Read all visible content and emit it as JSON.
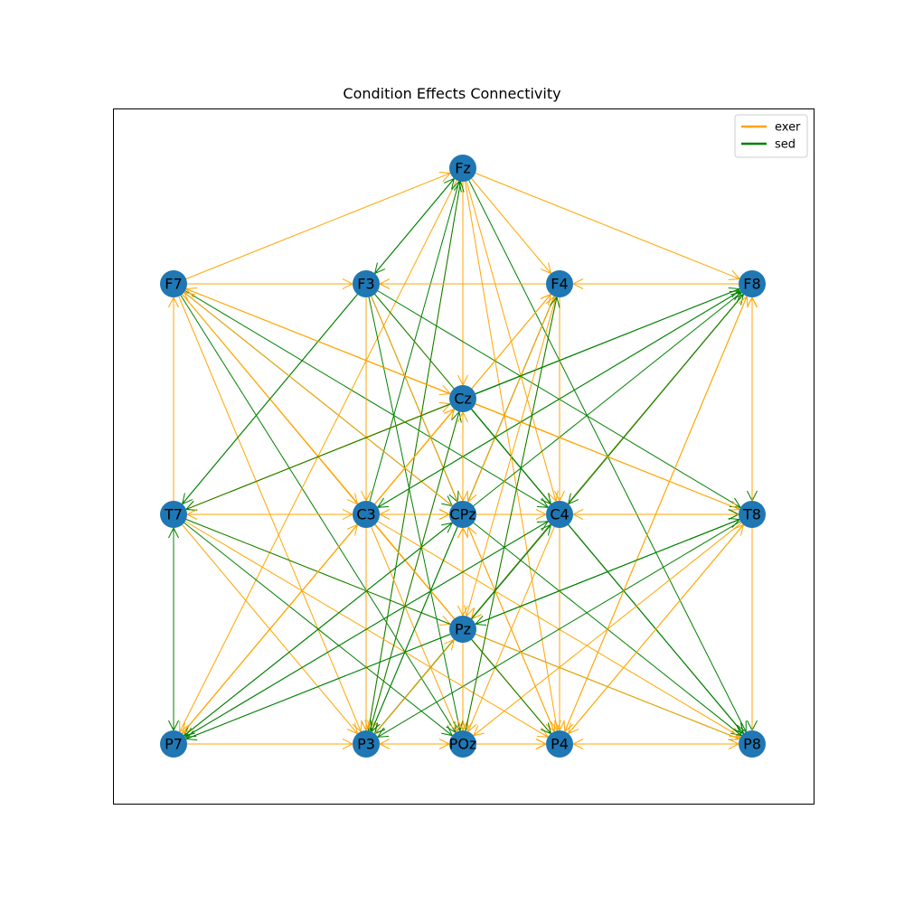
{
  "title": "Condition Effects Connectivity",
  "colors": {
    "exer": "#ffa500",
    "sed": "#008000",
    "node": "#1f77b4"
  },
  "legend": [
    {
      "key": "exer",
      "label": "exer"
    },
    {
      "key": "sed",
      "label": "sed"
    }
  ],
  "nodes": [
    {
      "id": "Fz",
      "label": "Fz"
    },
    {
      "id": "F7",
      "label": "F7"
    },
    {
      "id": "F3",
      "label": "F3"
    },
    {
      "id": "F4",
      "label": "F4"
    },
    {
      "id": "F8",
      "label": "F8"
    },
    {
      "id": "Cz",
      "label": "Cz"
    },
    {
      "id": "T7",
      "label": "T7"
    },
    {
      "id": "C3",
      "label": "C3"
    },
    {
      "id": "CPz",
      "label": "CPz"
    },
    {
      "id": "C4",
      "label": "C4"
    },
    {
      "id": "T8",
      "label": "T8"
    },
    {
      "id": "Pz",
      "label": "Pz"
    },
    {
      "id": "P7",
      "label": "P7"
    },
    {
      "id": "P3",
      "label": "P3"
    },
    {
      "id": "POz",
      "label": "POz"
    },
    {
      "id": "P4",
      "label": "P4"
    },
    {
      "id": "P8",
      "label": "P8"
    }
  ],
  "edges": [
    {
      "from": "F7",
      "to": "Fz",
      "condition": "exer"
    },
    {
      "from": "F7",
      "to": "F3",
      "condition": "exer"
    },
    {
      "from": "F7",
      "to": "Cz",
      "condition": "exer"
    },
    {
      "from": "F7",
      "to": "C3",
      "condition": "exer"
    },
    {
      "from": "F7",
      "to": "P3",
      "condition": "exer"
    },
    {
      "from": "F7",
      "to": "CPz",
      "condition": "sed"
    },
    {
      "from": "F7",
      "to": "C4",
      "condition": "sed"
    },
    {
      "from": "F7",
      "to": "POz",
      "condition": "sed"
    },
    {
      "from": "F7",
      "to": "P4",
      "condition": "exer"
    },
    {
      "from": "Fz",
      "to": "F4",
      "condition": "exer"
    },
    {
      "from": "Fz",
      "to": "F8",
      "condition": "exer"
    },
    {
      "from": "Fz",
      "to": "F3",
      "condition": "sed"
    },
    {
      "from": "Fz",
      "to": "Cz",
      "condition": "exer"
    },
    {
      "from": "Fz",
      "to": "CPz",
      "condition": "exer"
    },
    {
      "from": "Fz",
      "to": "Pz",
      "condition": "exer"
    },
    {
      "from": "Fz",
      "to": "POz",
      "condition": "exer"
    },
    {
      "from": "Fz",
      "to": "P4",
      "condition": "exer"
    },
    {
      "from": "Fz",
      "to": "P8",
      "condition": "sed"
    },
    {
      "from": "Fz",
      "to": "C4",
      "condition": "exer"
    },
    {
      "from": "Fz",
      "to": "P3",
      "condition": "exer"
    },
    {
      "from": "Fz",
      "to": "P7",
      "condition": "exer"
    },
    {
      "from": "C3",
      "to": "Fz",
      "condition": "sed"
    },
    {
      "from": "P3",
      "to": "Fz",
      "condition": "sed"
    },
    {
      "from": "T7",
      "to": "Fz",
      "condition": "sed"
    },
    {
      "from": "F4",
      "to": "F3",
      "condition": "exer"
    },
    {
      "from": "F8",
      "to": "F4",
      "condition": "exer"
    },
    {
      "from": "F3",
      "to": "T7",
      "condition": "sed"
    },
    {
      "from": "F3",
      "to": "C3",
      "condition": "exer"
    },
    {
      "from": "F3",
      "to": "CPz",
      "condition": "sed"
    },
    {
      "from": "F3",
      "to": "C4",
      "condition": "exer"
    },
    {
      "from": "F3",
      "to": "T8",
      "condition": "sed"
    },
    {
      "from": "F3",
      "to": "P3",
      "condition": "exer"
    },
    {
      "from": "F3",
      "to": "POz",
      "condition": "sed"
    },
    {
      "from": "F3",
      "to": "P4",
      "condition": "exer"
    },
    {
      "from": "F3",
      "to": "P8",
      "condition": "sed"
    },
    {
      "from": "T7",
      "to": "F7",
      "condition": "exer"
    },
    {
      "from": "T7",
      "to": "Cz",
      "condition": "exer"
    },
    {
      "from": "Cz",
      "to": "T7",
      "condition": "exer"
    },
    {
      "from": "T7",
      "to": "C3",
      "condition": "exer"
    },
    {
      "from": "T7",
      "to": "CPz",
      "condition": "exer"
    },
    {
      "from": "T7",
      "to": "Pz",
      "condition": "exer"
    },
    {
      "from": "T7",
      "to": "P3",
      "condition": "exer"
    },
    {
      "from": "T7",
      "to": "POz",
      "condition": "sed"
    },
    {
      "from": "T7",
      "to": "P4",
      "condition": "exer"
    },
    {
      "from": "T7",
      "to": "P8",
      "condition": "sed"
    },
    {
      "from": "P7",
      "to": "T7",
      "condition": "sed"
    },
    {
      "from": "T7",
      "to": "P7",
      "condition": "sed"
    },
    {
      "from": "P7",
      "to": "P3",
      "condition": "exer"
    },
    {
      "from": "P7",
      "to": "Cz",
      "condition": "exer"
    },
    {
      "from": "P7",
      "to": "F4",
      "condition": "exer"
    },
    {
      "from": "P7",
      "to": "C3",
      "condition": "exer"
    },
    {
      "from": "CPz",
      "to": "P7",
      "condition": "sed"
    },
    {
      "from": "C4",
      "to": "P7",
      "condition": "sed"
    },
    {
      "from": "T8",
      "to": "P7",
      "condition": "sed"
    },
    {
      "from": "Cz",
      "to": "F8",
      "condition": "sed"
    },
    {
      "from": "Cz",
      "to": "C4",
      "condition": "sed"
    },
    {
      "from": "Cz",
      "to": "T8",
      "condition": "exer"
    },
    {
      "from": "Cz",
      "to": "P3",
      "condition": "exer"
    },
    {
      "from": "Cz",
      "to": "POz",
      "condition": "exer"
    },
    {
      "from": "Cz",
      "to": "P8",
      "condition": "sed"
    },
    {
      "from": "C3",
      "to": "Cz",
      "condition": "exer"
    },
    {
      "from": "P3",
      "to": "Cz",
      "condition": "sed"
    },
    {
      "from": "C3",
      "to": "CPz",
      "condition": "exer"
    },
    {
      "from": "C3",
      "to": "F8",
      "condition": "sed"
    },
    {
      "from": "C3",
      "to": "F4",
      "condition": "exer"
    },
    {
      "from": "C3",
      "to": "P3",
      "condition": "exer"
    },
    {
      "from": "C3",
      "to": "POz",
      "condition": "exer"
    },
    {
      "from": "C3",
      "to": "P4",
      "condition": "exer"
    },
    {
      "from": "C3",
      "to": "P8",
      "condition": "exer"
    },
    {
      "from": "C3",
      "to": "P7",
      "condition": "exer"
    },
    {
      "from": "CPz",
      "to": "F4",
      "condition": "exer"
    },
    {
      "from": "CPz",
      "to": "F8",
      "condition": "sed"
    },
    {
      "from": "CPz",
      "to": "C4",
      "condition": "exer"
    },
    {
      "from": "CPz",
      "to": "POz",
      "condition": "exer"
    },
    {
      "from": "CPz",
      "to": "P8",
      "condition": "sed"
    },
    {
      "from": "CPz",
      "to": "P3",
      "condition": "sed"
    },
    {
      "from": "CPz",
      "to": "F7",
      "condition": "exer"
    },
    {
      "from": "CPz",
      "to": "T8",
      "condition": "exer"
    },
    {
      "from": "Pz",
      "to": "CPz",
      "condition": "exer"
    },
    {
      "from": "POz",
      "to": "CPz",
      "condition": "exer"
    },
    {
      "from": "P4",
      "to": "CPz",
      "condition": "exer"
    },
    {
      "from": "F4",
      "to": "P4",
      "condition": "exer"
    },
    {
      "from": "F4",
      "to": "P3",
      "condition": "sed"
    },
    {
      "from": "F4",
      "to": "POz",
      "condition": "exer"
    },
    {
      "from": "F4",
      "to": "Pz",
      "condition": "exer"
    },
    {
      "from": "F4",
      "to": "CPz",
      "condition": "exer"
    },
    {
      "from": "F4",
      "to": "C4",
      "condition": "exer"
    },
    {
      "from": "F8",
      "to": "T7",
      "condition": "sed"
    },
    {
      "from": "F8",
      "to": "C3",
      "condition": "sed"
    },
    {
      "from": "F8",
      "to": "C4",
      "condition": "sed"
    },
    {
      "from": "F8",
      "to": "T8",
      "condition": "sed"
    },
    {
      "from": "T8",
      "to": "F8",
      "condition": "exer"
    },
    {
      "from": "F8",
      "to": "P4",
      "condition": "exer"
    },
    {
      "from": "F8",
      "to": "P3",
      "condition": "sed"
    },
    {
      "from": "F8",
      "to": "Pz",
      "condition": "exer"
    },
    {
      "from": "C4",
      "to": "F8",
      "condition": "sed"
    },
    {
      "from": "C4",
      "to": "T8",
      "condition": "sed"
    },
    {
      "from": "T8",
      "to": "C4",
      "condition": "exer"
    },
    {
      "from": "C4",
      "to": "Pz",
      "condition": "exer"
    },
    {
      "from": "C4",
      "to": "P3",
      "condition": "sed"
    },
    {
      "from": "C4",
      "to": "POz",
      "condition": "exer"
    },
    {
      "from": "C4",
      "to": "P8",
      "condition": "sed"
    },
    {
      "from": "C4",
      "to": "T7",
      "condition": "exer"
    },
    {
      "from": "T8",
      "to": "Pz",
      "condition": "sed"
    },
    {
      "from": "T8",
      "to": "P3",
      "condition": "sed"
    },
    {
      "from": "T8",
      "to": "POz",
      "condition": "exer"
    },
    {
      "from": "T8",
      "to": "P4",
      "condition": "exer"
    },
    {
      "from": "T8",
      "to": "P8",
      "condition": "sed"
    },
    {
      "from": "T8",
      "to": "F7",
      "condition": "exer"
    },
    {
      "from": "T8",
      "to": "C3",
      "condition": "exer"
    },
    {
      "from": "Pz",
      "to": "P4",
      "condition": "sed"
    },
    {
      "from": "Pz",
      "to": "P8",
      "condition": "exer"
    },
    {
      "from": "Pz",
      "to": "P3",
      "condition": "sed"
    },
    {
      "from": "Pz",
      "to": "POz",
      "condition": "exer"
    },
    {
      "from": "P3",
      "to": "POz",
      "condition": "exer"
    },
    {
      "from": "POz",
      "to": "P4",
      "condition": "exer"
    },
    {
      "from": "P4",
      "to": "P8",
      "condition": "exer"
    },
    {
      "from": "P8",
      "to": "P4",
      "condition": "exer"
    },
    {
      "from": "P3",
      "to": "P4",
      "condition": "exer"
    },
    {
      "from": "POz",
      "to": "P3",
      "condition": "exer"
    },
    {
      "from": "P3",
      "to": "C4",
      "condition": "sed"
    },
    {
      "from": "P3",
      "to": "Pz",
      "condition": "exer"
    },
    {
      "from": "P4",
      "to": "F8",
      "condition": "exer"
    },
    {
      "from": "P8",
      "to": "F8",
      "condition": "exer"
    },
    {
      "from": "P4",
      "to": "T8",
      "condition": "exer"
    },
    {
      "from": "POz",
      "to": "Cz",
      "condition": "exer"
    },
    {
      "from": "POz",
      "to": "F4",
      "condition": "sed"
    },
    {
      "from": "P7",
      "to": "C4",
      "condition": "sed"
    },
    {
      "from": "P7",
      "to": "T8",
      "condition": "sed"
    },
    {
      "from": "P7",
      "to": "CPz",
      "condition": "sed"
    }
  ]
}
